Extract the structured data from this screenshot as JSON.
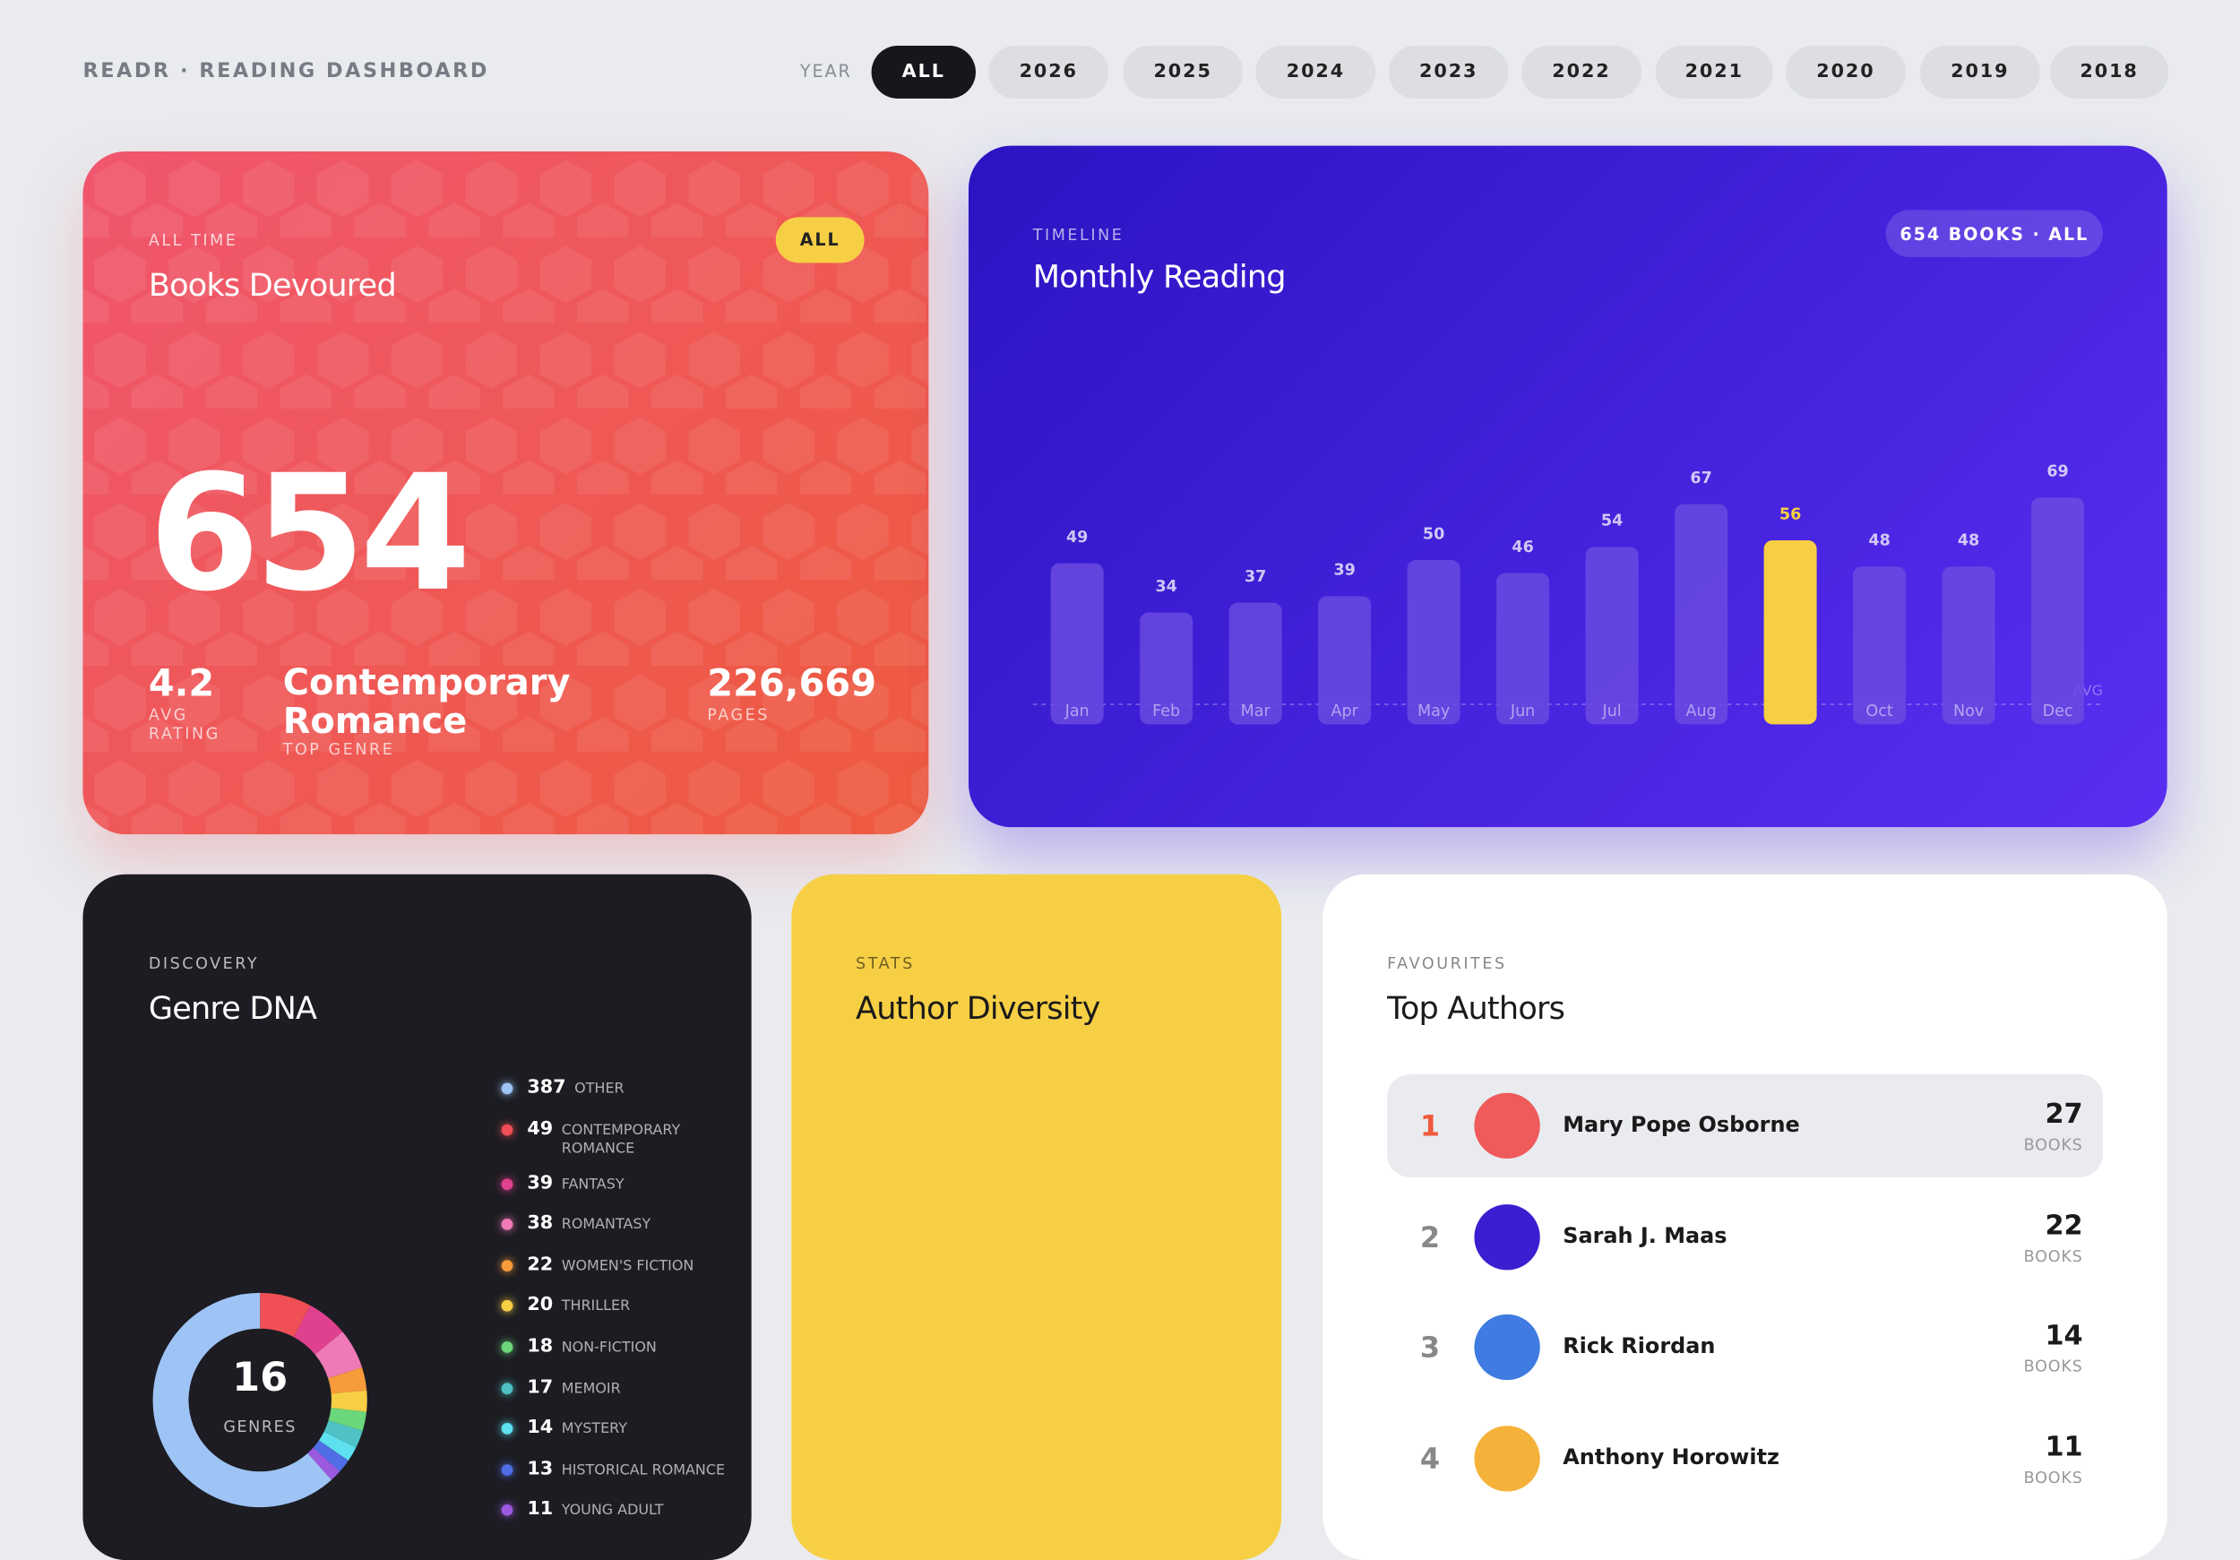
{
  "header": {
    "brand": "READR · READING DASHBOARD",
    "year_label": "YEAR",
    "years": [
      "ALL",
      "2026",
      "2025",
      "2024",
      "2023",
      "2022",
      "2021",
      "2020",
      "2019",
      "2018"
    ],
    "active_year": "ALL"
  },
  "hero": {
    "eyebrow": "ALL TIME",
    "title": "Books Devoured",
    "badge": "ALL",
    "total": "654",
    "stats": [
      {
        "value": "4.2",
        "label": "AVG RATING"
      },
      {
        "value": "Contemporary Romance",
        "label": "TOP GENRE"
      },
      {
        "value": "226,669",
        "label": "PAGES"
      }
    ]
  },
  "monthly": {
    "eyebrow": "TIMELINE",
    "title": "Monthly Reading",
    "badge": "654 BOOKS · ALL",
    "avg_label": "AVG",
    "chart_data": {
      "type": "bar",
      "categories": [
        "Jan",
        "Feb",
        "Mar",
        "Apr",
        "May",
        "Jun",
        "Jul",
        "Aug",
        null,
        "Oct",
        "Nov",
        "Dec"
      ],
      "values": [
        49,
        34,
        37,
        39,
        50,
        46,
        54,
        67,
        56,
        48,
        48,
        69
      ],
      "colors": [
        "#6a4ae0",
        "#6a4ae0",
        "#6a4ae0",
        "#6a4ae0",
        "#6a4ae0",
        "#6a4ae0",
        "#6a4ae0",
        "#6a4ae0",
        "#f7cf45",
        "#6a4ae0",
        "#6a4ae0",
        "#6a4ae0"
      ]
    }
  },
  "genres": {
    "eyebrow": "DISCOVERY",
    "title": "Genre DNA",
    "center_value": "16",
    "center_label": "GENRES",
    "chart_data": {
      "type": "donut",
      "series": [
        {
          "name": "OTHER",
          "value": 387,
          "color": "#9ec3f5"
        },
        {
          "name": "CONTEMPORARY ROMANCE",
          "value": 49,
          "color": "#ef4f55"
        },
        {
          "name": "FANTASY",
          "value": 39,
          "color": "#e0418f"
        },
        {
          "name": "ROMANTASY",
          "value": 38,
          "color": "#f07ab8"
        },
        {
          "name": "WOMEN'S FICTION",
          "value": 22,
          "color": "#f79b3b"
        },
        {
          "name": "THRILLER",
          "value": 20,
          "color": "#f7cf45"
        },
        {
          "name": "NON-FICTION",
          "value": 18,
          "color": "#6bd67a"
        },
        {
          "name": "MEMOIR",
          "value": 17,
          "color": "#4ec2c4"
        },
        {
          "name": "MYSTERY",
          "value": 14,
          "color": "#5ee0ee"
        },
        {
          "name": "HISTORICAL ROMANCE",
          "value": 13,
          "color": "#4f6ee6"
        },
        {
          "name": "YOUNG ADULT",
          "value": 11,
          "color": "#9b59e0"
        }
      ]
    }
  },
  "stats": {
    "eyebrow": "STATS",
    "title": "Author Diversity"
  },
  "authors": {
    "eyebrow": "FAVOURITES",
    "title": "Top Authors",
    "unit": "BOOKS",
    "rows": [
      {
        "rank": "1",
        "name": "Mary Pope Osborne",
        "count": "27",
        "color": "#ef5a5a"
      },
      {
        "rank": "2",
        "name": "Sarah J. Maas",
        "count": "22",
        "color": "#3a1fd0"
      },
      {
        "rank": "3",
        "name": "Rick Riordan",
        "count": "14",
        "color": "#3f7be0"
      },
      {
        "rank": "4",
        "name": "Anthony Horowitz",
        "count": "11",
        "color": "#f5b23a"
      }
    ]
  }
}
